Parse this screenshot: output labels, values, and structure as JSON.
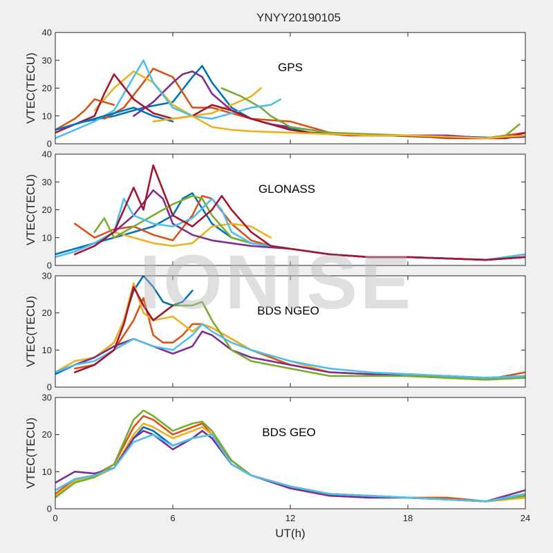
{
  "figure": {
    "title": "YNYY20190105",
    "xlabel": "UT(h)",
    "xticks": [
      "0",
      "6",
      "12",
      "18",
      "24"
    ],
    "watermark": "IONISE"
  },
  "chart_data": [
    {
      "type": "line",
      "panel_label": "GPS",
      "ylabel": "VTEC(TECU)",
      "xlim": [
        0,
        24
      ],
      "ylim": [
        0,
        40
      ],
      "yticks": [
        "0",
        "10",
        "20",
        "30",
        "40"
      ],
      "series": [
        {
          "color": "#0072BD",
          "x": [
            1.5,
            3,
            4.5,
            6,
            7,
            7.5,
            8,
            9,
            10,
            11,
            13,
            15,
            17,
            19,
            21,
            23,
            24
          ],
          "y": [
            8,
            10,
            13,
            15,
            24,
            28,
            22,
            13,
            9,
            7,
            4,
            3.5,
            3,
            2.5,
            2.5,
            2,
            3
          ]
        },
        {
          "color": "#D95319",
          "x": [
            2.5,
            3.5,
            4.5,
            5,
            6,
            7,
            8,
            9,
            10,
            11,
            12,
            14,
            16,
            18,
            20,
            22,
            24
          ],
          "y": [
            9,
            13,
            22,
            27,
            24,
            13,
            13,
            11,
            9,
            8.5,
            8,
            4,
            3,
            3,
            2,
            2,
            4
          ]
        },
        {
          "color": "#EDB120",
          "x": [
            2,
            3,
            4,
            5,
            6,
            7,
            8,
            9,
            10,
            10.5
          ],
          "y": [
            12,
            20,
            26,
            22,
            14,
            10,
            11,
            14,
            17,
            20
          ]
        },
        {
          "color": "#7E2F8E",
          "x": [
            4,
            5,
            6,
            6.5,
            7,
            7.5,
            8,
            9,
            10,
            11,
            12,
            14,
            16,
            18,
            20,
            22,
            24
          ],
          "y": [
            10,
            15,
            22,
            25,
            26,
            24,
            18,
            12,
            9,
            7,
            6,
            4,
            3,
            3,
            3,
            2,
            2.5
          ]
        },
        {
          "color": "#77AC30",
          "x": [
            8.5,
            9.5,
            10.5,
            11,
            12,
            14,
            16,
            18,
            20,
            22,
            23,
            23.7
          ],
          "y": [
            20,
            17,
            13,
            10,
            6,
            4,
            3.5,
            3,
            2.5,
            2,
            3,
            7
          ]
        },
        {
          "color": "#4DBEEE",
          "x": [
            0,
            1,
            2,
            3,
            4,
            4.5,
            5,
            6,
            7,
            8,
            9,
            10,
            11,
            11.5
          ],
          "y": [
            2,
            5,
            8,
            12,
            24,
            30,
            22,
            13,
            10,
            9,
            11,
            13,
            14,
            16
          ]
        },
        {
          "color": "#A2142F",
          "x": [
            0,
            1,
            2,
            2.5,
            3,
            4,
            5,
            6,
            7,
            8,
            9,
            10,
            11,
            12,
            13,
            15,
            17,
            19,
            21,
            23,
            24
          ],
          "y": [
            4,
            7,
            10,
            18,
            25,
            16,
            11,
            9,
            10,
            14,
            12,
            9,
            7,
            5,
            4,
            3,
            3,
            2.5,
            2,
            2,
            4
          ]
        },
        {
          "color": "#D95319",
          "x": [
            0,
            0.5,
            1,
            1.5,
            2,
            3
          ],
          "y": [
            5,
            7,
            9,
            12,
            16,
            14
          ]
        },
        {
          "color": "#0072BD",
          "x": [
            0,
            1,
            2,
            3,
            4,
            5,
            6
          ],
          "y": [
            5,
            7,
            9,
            11,
            13,
            10,
            8
          ]
        },
        {
          "color": "#EDB120",
          "x": [
            5,
            6,
            7,
            7.5,
            8,
            9,
            10,
            12,
            14,
            16,
            18,
            20,
            22,
            24
          ],
          "y": [
            8,
            9,
            10,
            8,
            6,
            5,
            4.5,
            4,
            3.5,
            3,
            3,
            2.5,
            2,
            3
          ]
        }
      ]
    },
    {
      "type": "line",
      "panel_label": "GLONASS",
      "ylabel": "VTEC(TECU)",
      "xlim": [
        0,
        24
      ],
      "ylim": [
        0,
        40
      ],
      "yticks": [
        "0",
        "10",
        "20",
        "30",
        "40"
      ],
      "series": [
        {
          "color": "#0072BD",
          "x": [
            0,
            1,
            2,
            3,
            4,
            5,
            6,
            6.5,
            7,
            8,
            9,
            10,
            11,
            12,
            14,
            16,
            18,
            20,
            22,
            24
          ],
          "y": [
            4,
            6,
            8,
            10,
            12,
            14,
            18,
            24,
            26,
            15,
            10,
            8,
            7,
            6,
            4,
            3,
            3,
            2.5,
            2,
            3
          ]
        },
        {
          "color": "#D95319",
          "x": [
            1,
            2,
            3,
            4,
            5,
            6,
            7,
            7.5,
            8,
            9,
            10,
            11,
            12,
            14,
            16,
            18,
            20,
            22,
            24
          ],
          "y": [
            15,
            10,
            13,
            14,
            11,
            9,
            18,
            25,
            24,
            15,
            9,
            7,
            6,
            4,
            3,
            3,
            2.5,
            2,
            4
          ]
        },
        {
          "color": "#EDB120",
          "x": [
            3,
            4,
            5,
            6,
            7,
            8,
            9,
            10,
            11
          ],
          "y": [
            12,
            10,
            8,
            7,
            8,
            14,
            15,
            14,
            10
          ]
        },
        {
          "color": "#7E2F8E",
          "x": [
            1,
            2,
            3,
            4,
            5,
            5.5,
            6,
            7,
            8,
            9,
            10,
            12,
            14,
            16,
            18,
            20,
            22,
            24
          ],
          "y": [
            5,
            8,
            12,
            18,
            27,
            24,
            15,
            11,
            9,
            8,
            7,
            6,
            4,
            3,
            3,
            2.5,
            2,
            3
          ]
        },
        {
          "color": "#77AC30",
          "x": [
            2,
            2.5,
            3,
            6,
            7,
            7.5,
            8,
            9,
            10,
            12,
            13
          ],
          "y": [
            12,
            17,
            10,
            22,
            25,
            24,
            18,
            10,
            8,
            6,
            5
          ]
        },
        {
          "color": "#4DBEEE",
          "x": [
            0,
            1,
            2,
            3,
            3.5,
            4,
            5,
            6,
            7,
            8,
            8.5,
            9,
            10,
            12,
            14,
            16,
            18,
            20,
            22,
            24
          ],
          "y": [
            3,
            5,
            8,
            12,
            24,
            18,
            15,
            14,
            17,
            24,
            20,
            12,
            8,
            6,
            4,
            3,
            3,
            2.5,
            2,
            4
          ]
        },
        {
          "color": "#A2142F",
          "x": [
            1,
            2,
            3,
            4,
            4.5,
            5,
            6,
            7,
            8,
            8.5,
            9,
            10,
            11,
            12,
            14,
            16,
            18,
            20,
            22,
            24
          ],
          "y": [
            4,
            7,
            12,
            28,
            20,
            36,
            18,
            14,
            20,
            25,
            20,
            12,
            7,
            6,
            4,
            3,
            3,
            2.5,
            2,
            3
          ]
        }
      ]
    },
    {
      "type": "line",
      "panel_label": "BDS NGEO",
      "ylabel": "VTEC(TECU)",
      "xlim": [
        0,
        24
      ],
      "ylim": [
        0,
        30
      ],
      "yticks": [
        "0",
        "10",
        "20",
        "30"
      ],
      "series": [
        {
          "color": "#0072BD",
          "x": [
            0,
            1,
            2,
            3,
            3.5,
            4,
            4.5,
            5,
            5.5,
            6,
            6.5,
            7
          ],
          "y": [
            3.5,
            6,
            8,
            12,
            18,
            26,
            30,
            27,
            23,
            22,
            23,
            26
          ]
        },
        {
          "color": "#D95319",
          "x": [
            1,
            2,
            3,
            3.5,
            4,
            4.5,
            5,
            5.5,
            6,
            6.5,
            7,
            7.5,
            8,
            9,
            10,
            12,
            14,
            16,
            18,
            20,
            22,
            24
          ],
          "y": [
            5,
            6,
            10,
            14,
            18,
            24,
            14,
            12,
            12,
            14,
            17,
            17,
            16,
            13,
            10,
            6,
            4,
            3.5,
            3,
            2.5,
            2,
            4
          ]
        },
        {
          "color": "#EDB120",
          "x": [
            0,
            1,
            2,
            3,
            3.5,
            4,
            4.5,
            5,
            6,
            7,
            7.5,
            8,
            9,
            10,
            12,
            14,
            16,
            18,
            20,
            22,
            24
          ],
          "y": [
            4,
            7,
            8,
            12,
            18,
            28,
            20,
            18,
            19,
            15,
            17,
            16,
            13,
            10,
            7,
            4,
            3.5,
            3,
            2.5,
            2,
            3
          ]
        },
        {
          "color": "#7E2F8E",
          "x": [
            0,
            1,
            2,
            3,
            4,
            5,
            6,
            7,
            7.5,
            8,
            9,
            10,
            12,
            14,
            16,
            18,
            20,
            22,
            24
          ],
          "y": [
            4,
            6,
            8,
            11,
            13,
            11,
            9,
            11,
            15,
            14,
            10,
            8,
            6,
            4,
            3.5,
            3,
            3,
            2.5,
            3
          ]
        },
        {
          "color": "#77AC30",
          "x": [
            6,
            7,
            7.5,
            8,
            9,
            10,
            12,
            14,
            16,
            18,
            20,
            22,
            24
          ],
          "y": [
            22,
            22,
            23,
            18,
            10,
            7,
            5,
            3,
            3,
            3,
            2.5,
            2,
            2.5
          ]
        },
        {
          "color": "#4DBEEE",
          "x": [
            0,
            1,
            2,
            3,
            4,
            5,
            6,
            7,
            7.5,
            8,
            9,
            10,
            12,
            14,
            16,
            18,
            20,
            22,
            24
          ],
          "y": [
            4,
            6,
            7,
            10,
            13,
            11,
            10,
            14,
            17,
            15,
            12,
            10,
            7,
            5,
            4,
            3.5,
            3,
            2.5,
            3
          ]
        },
        {
          "color": "#A2142F",
          "x": [
            1,
            2,
            3,
            3.5,
            4,
            4.5,
            5,
            5.5,
            6
          ],
          "y": [
            4,
            6,
            10,
            17,
            27,
            22,
            18,
            20,
            22
          ]
        }
      ]
    },
    {
      "type": "line",
      "panel_label": "BDS GEO",
      "ylabel": "VTEC(TECU)",
      "xlim": [
        0,
        24
      ],
      "ylim": [
        0,
        30
      ],
      "yticks": [
        "0",
        "10",
        "20",
        "30"
      ],
      "series": [
        {
          "color": "#0072BD",
          "x": [
            0,
            1,
            2,
            3,
            4,
            4.5,
            5,
            6,
            7,
            7.5,
            8,
            9,
            10,
            12,
            14,
            16,
            18,
            20,
            22,
            24
          ],
          "y": [
            5,
            8,
            9,
            11,
            19,
            22,
            21,
            17,
            19,
            21,
            19,
            12,
            9,
            6,
            4,
            3.5,
            3,
            2.5,
            2,
            4
          ]
        },
        {
          "color": "#D95319",
          "x": [
            0,
            1,
            2,
            3,
            4,
            4.5,
            5,
            6,
            7,
            7.5,
            8,
            9,
            10,
            12,
            14,
            16,
            18,
            20,
            22,
            24
          ],
          "y": [
            4,
            8,
            9,
            12,
            22,
            25,
            24,
            20,
            22,
            23,
            20,
            13,
            9,
            6,
            4,
            3.5,
            3,
            3,
            2,
            3
          ]
        },
        {
          "color": "#EDB120",
          "x": [
            0,
            1,
            2,
            3,
            4,
            4.5,
            5,
            6,
            7,
            7.5,
            8,
            9,
            10,
            12,
            14,
            16,
            18,
            20,
            22,
            24
          ],
          "y": [
            3.5,
            7.5,
            8.5,
            11,
            20,
            23,
            22,
            19,
            21,
            22,
            20,
            12,
            9,
            6,
            4,
            3.5,
            3,
            2.5,
            2,
            3
          ]
        },
        {
          "color": "#7E2F8E",
          "x": [
            0,
            1,
            2,
            3,
            4,
            4.5,
            5,
            6,
            7,
            7.5,
            8,
            9,
            10,
            12,
            14,
            16,
            18,
            20,
            22,
            24
          ],
          "y": [
            7,
            10,
            9.5,
            11,
            19,
            21,
            20,
            16,
            19,
            21,
            19,
            12,
            9,
            5.5,
            3.5,
            3,
            3,
            2.5,
            2,
            5
          ]
        },
        {
          "color": "#77AC30",
          "x": [
            0,
            1,
            2,
            3,
            4,
            4.5,
            5,
            6,
            7,
            7.5,
            8,
            9,
            10,
            12,
            14,
            16,
            18,
            20,
            22,
            24
          ],
          "y": [
            3,
            7,
            8.5,
            12,
            24,
            26.5,
            25,
            21,
            23,
            23.5,
            21,
            13,
            9,
            6,
            4,
            3.5,
            3,
            2.5,
            2,
            3.5
          ]
        },
        {
          "color": "#4DBEEE",
          "x": [
            0,
            1,
            2,
            3,
            4,
            5,
            6,
            7,
            8,
            9,
            10,
            12,
            14,
            16,
            18,
            20,
            22,
            24
          ],
          "y": [
            5,
            8,
            9,
            11,
            18,
            20,
            17,
            19,
            20,
            12,
            9,
            6,
            4,
            3.5,
            3,
            2.5,
            2,
            4
          ]
        }
      ]
    }
  ]
}
